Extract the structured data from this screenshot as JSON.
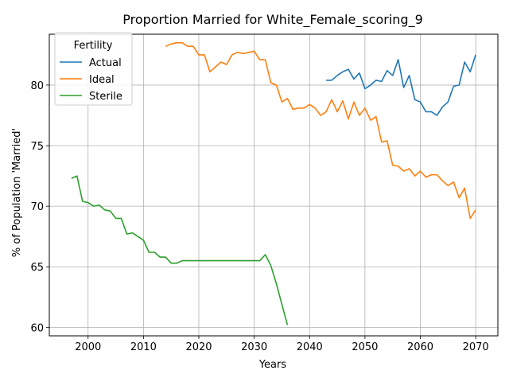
{
  "chart_data": {
    "type": "line",
    "title": "Proportion Married for White_Female_scoring_9",
    "xlabel": "Years",
    "ylabel": "% of Population 'Married'",
    "xlim": [
      1993,
      2074
    ],
    "ylim": [
      59.3,
      84.2
    ],
    "x_ticks": [
      2000,
      2010,
      2020,
      2030,
      2040,
      2050,
      2060,
      2070
    ],
    "y_ticks": [
      60,
      65,
      70,
      75,
      80
    ],
    "grid": true,
    "legend": {
      "title": "Fertility",
      "position": "upper-left"
    },
    "series": [
      {
        "name": "Actual",
        "color": "#1f77b4",
        "x": [
          2043,
          2044,
          2045,
          2046,
          2047,
          2048,
          2049,
          2050,
          2051,
          2052,
          2053,
          2054,
          2055,
          2056,
          2057,
          2058,
          2059,
          2060,
          2061,
          2062,
          2063,
          2064,
          2065,
          2066,
          2067,
          2068,
          2069,
          2070
        ],
        "y": [
          80.4,
          80.4,
          80.8,
          81.1,
          81.3,
          80.5,
          81.0,
          79.7,
          80.0,
          80.4,
          80.3,
          81.2,
          80.8,
          82.1,
          79.8,
          80.8,
          78.8,
          78.6,
          77.8,
          77.8,
          77.5,
          78.2,
          78.6,
          79.9,
          80.0,
          81.9,
          81.1,
          82.5
        ]
      },
      {
        "name": "Ideal",
        "color": "#ff7f0e",
        "x": [
          2014,
          2015,
          2016,
          2017,
          2018,
          2019,
          2020,
          2021,
          2022,
          2023,
          2024,
          2025,
          2026,
          2027,
          2028,
          2029,
          2030,
          2031,
          2032,
          2033,
          2034,
          2035,
          2036,
          2037,
          2038,
          2039,
          2040,
          2041,
          2042,
          2043,
          2044,
          2045,
          2046,
          2047,
          2048,
          2049,
          2050,
          2051,
          2052,
          2053,
          2054,
          2055,
          2056,
          2057,
          2058,
          2059,
          2060,
          2061,
          2062,
          2063,
          2064,
          2065,
          2066,
          2067,
          2068,
          2069,
          2070
        ],
        "y": [
          83.2,
          83.4,
          83.5,
          83.5,
          83.2,
          83.2,
          82.5,
          82.5,
          81.1,
          81.5,
          81.9,
          81.7,
          82.5,
          82.7,
          82.6,
          82.7,
          82.8,
          82.1,
          82.1,
          80.2,
          80.0,
          78.6,
          78.9,
          78.0,
          78.1,
          78.1,
          78.4,
          78.1,
          77.5,
          77.8,
          78.8,
          77.8,
          78.7,
          77.2,
          78.6,
          77.5,
          78.1,
          77.1,
          77.4,
          75.3,
          75.4,
          73.4,
          73.3,
          72.9,
          73.1,
          72.5,
          72.9,
          72.4,
          72.6,
          72.6,
          72.1,
          71.7,
          72.0,
          70.7,
          71.5,
          69.0,
          69.7
        ]
      },
      {
        "name": "Sterile",
        "color": "#2ca02c",
        "x": [
          1997,
          1998,
          1999,
          2000,
          2001,
          2002,
          2003,
          2004,
          2005,
          2006,
          2007,
          2008,
          2009,
          2010,
          2011,
          2012,
          2013,
          2014,
          2015,
          2016,
          2017,
          2018,
          2019,
          2020,
          2021,
          2022,
          2023,
          2024,
          2025,
          2026,
          2027,
          2028,
          2029,
          2030,
          2031,
          2032,
          2033,
          2034,
          2035,
          2036
        ],
        "y": [
          72.3,
          72.5,
          70.4,
          70.3,
          70.0,
          70.1,
          69.7,
          69.6,
          69.0,
          69.0,
          67.7,
          67.8,
          67.5,
          67.2,
          66.2,
          66.2,
          65.8,
          65.8,
          65.3,
          65.3,
          65.5,
          65.5,
          65.5,
          65.5,
          65.5,
          65.5,
          65.5,
          65.5,
          65.5,
          65.5,
          65.5,
          65.5,
          65.5,
          65.5,
          65.5,
          66.0,
          65.1,
          63.6,
          61.9,
          60.2
        ]
      }
    ]
  }
}
